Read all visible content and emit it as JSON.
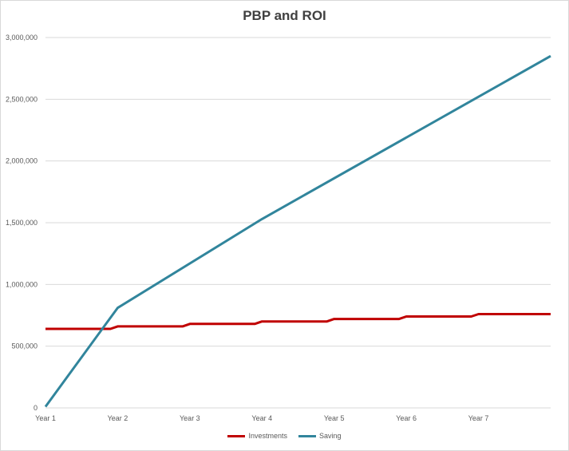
{
  "chart_data": {
    "type": "line",
    "title": "PBP and ROI",
    "xlabel": "",
    "ylabel": "",
    "categories": [
      "Year 1",
      "Year 2",
      "Year 3",
      "Year 4",
      "Year 5",
      "Year 6",
      "Year 7"
    ],
    "ylim": [
      0,
      3000000
    ],
    "yticks": [
      {
        "value": 0,
        "label": "0"
      },
      {
        "value": 500000,
        "label": "500,000"
      },
      {
        "value": 1000000,
        "label": "1,000,000"
      },
      {
        "value": 1500000,
        "label": "1,500,000"
      },
      {
        "value": 2000000,
        "label": "2,000,000"
      },
      {
        "value": 2500000,
        "label": "2,500,000"
      },
      {
        "value": 3000000,
        "label": "3,000,000"
      }
    ],
    "grid": true,
    "legend_position": "bottom",
    "series": [
      {
        "name": "Investments",
        "color": "#c00000",
        "points": [
          [
            1,
            640000
          ],
          [
            1.9,
            640000
          ],
          [
            2.0,
            660000
          ],
          [
            2.9,
            660000
          ],
          [
            3.0,
            680000
          ],
          [
            3.9,
            680000
          ],
          [
            4.0,
            700000
          ],
          [
            4.9,
            700000
          ],
          [
            5.0,
            720000
          ],
          [
            5.9,
            720000
          ],
          [
            6.0,
            740000
          ],
          [
            6.9,
            740000
          ],
          [
            7.0,
            760000
          ],
          [
            8.0,
            760000
          ]
        ]
      },
      {
        "name": "Saving",
        "color": "#31859c",
        "points": [
          [
            1,
            10000
          ],
          [
            2,
            810000
          ],
          [
            4,
            1530000
          ],
          [
            8,
            2850000
          ]
        ]
      }
    ]
  }
}
